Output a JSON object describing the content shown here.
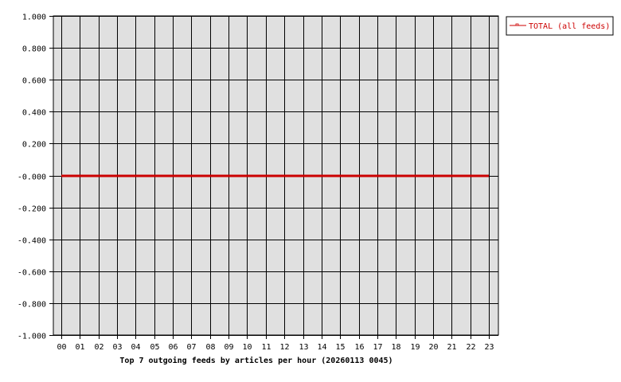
{
  "chart_data": {
    "type": "line",
    "title": "Top 7 outgoing feeds by articles per hour (20260113 0045)",
    "xlabel": "",
    "ylabel": "",
    "categories": [
      "00",
      "01",
      "02",
      "03",
      "04",
      "05",
      "06",
      "07",
      "08",
      "09",
      "10",
      "11",
      "12",
      "13",
      "14",
      "15",
      "16",
      "17",
      "18",
      "19",
      "20",
      "21",
      "22",
      "23"
    ],
    "y_ticks": [
      "1.000",
      "0.800",
      "0.600",
      "0.400",
      "0.200",
      "-0.000",
      "-0.200",
      "-0.400",
      "-0.600",
      "-0.800",
      "-1.000"
    ],
    "ylim": [
      -1,
      1
    ],
    "grid": true,
    "legend_position": "top-right",
    "series": [
      {
        "name": "TOTAL (all feeds)",
        "color": "#cc0000",
        "values": [
          0,
          0,
          0,
          0,
          0,
          0,
          0,
          0,
          0,
          0,
          0,
          0,
          0,
          0,
          0,
          0,
          0,
          0,
          0,
          0,
          0,
          0,
          0,
          0
        ]
      }
    ],
    "plot_background": "#e0e0e0"
  }
}
